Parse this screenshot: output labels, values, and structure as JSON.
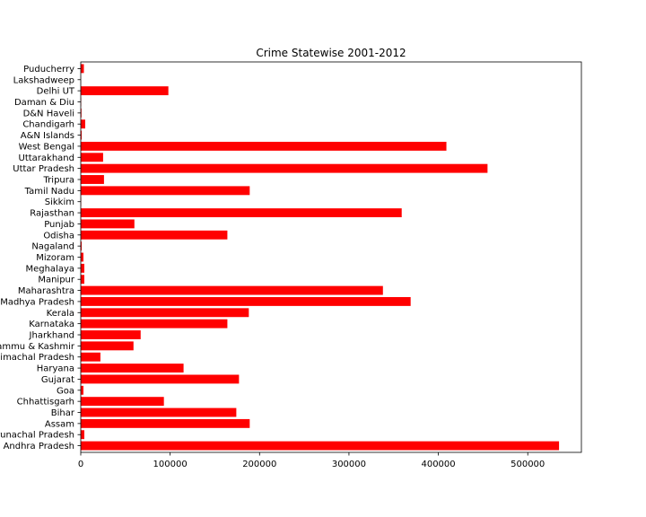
{
  "chart_data": {
    "type": "bar",
    "orientation": "horizontal",
    "title": "Crime Statewise 2001-2012",
    "xlabel": "",
    "ylabel": "",
    "bar_color": "#ff0000",
    "xlim": [
      0,
      560000
    ],
    "xticks": [
      0,
      100000,
      200000,
      300000,
      400000,
      500000
    ],
    "xtick_labels": [
      "0",
      "100000",
      "200000",
      "300000",
      "400000",
      "500000"
    ],
    "grid": false,
    "categories": [
      "Andhra Pradesh",
      "Arunachal Pradesh",
      "Assam",
      "Bihar",
      "Chhattisgarh",
      "Goa",
      "Gujarat",
      "Haryana",
      "Himachal Pradesh",
      "Jammu & Kashmir",
      "Jharkhand",
      "Karnataka",
      "Kerala",
      "Madhya Pradesh",
      "Maharashtra",
      "Manipur",
      "Meghalaya",
      "Mizoram",
      "Nagaland",
      "Odisha",
      "Punjab",
      "Rajasthan",
      "Sikkim",
      "Tamil Nadu",
      "Tripura",
      "Uttar Pradesh",
      "Uttarakhand",
      "West Bengal",
      "A&N Islands",
      "Chandigarh",
      "D&N Haveli",
      "Daman & Diu",
      "Delhi UT",
      "Lakshadweep",
      "Puducherry"
    ],
    "values": [
      535000,
      4000,
      189000,
      174000,
      93000,
      3000,
      177000,
      115000,
      22000,
      59000,
      67000,
      164000,
      188000,
      369000,
      338000,
      4000,
      4000,
      3000,
      1000,
      164000,
      60000,
      359000,
      500,
      189000,
      26000,
      455000,
      25000,
      409000,
      1000,
      5000,
      800,
      500,
      98000,
      100,
      3500
    ]
  }
}
